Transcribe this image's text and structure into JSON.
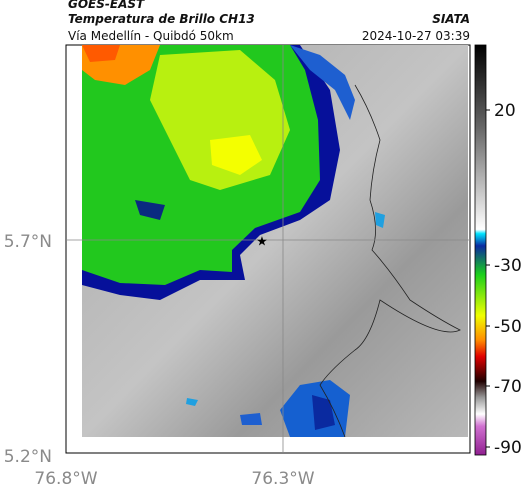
{
  "header": {
    "satellite": "GOES-EAST",
    "product": "Temperatura de Brillo CH13",
    "source": "SIATA",
    "route": "Vía Medellín - Quibdó 50km",
    "timestamp": "2024-10-27 03:39"
  },
  "map": {
    "lat_labels": [
      "5.7°N",
      "5.2°N"
    ],
    "lon_labels": [
      "76.8°W",
      "76.3°W"
    ]
  },
  "colorbar": {
    "tick_labels": [
      "20",
      "-30",
      "-50",
      "-70",
      "-90"
    ]
  }
}
